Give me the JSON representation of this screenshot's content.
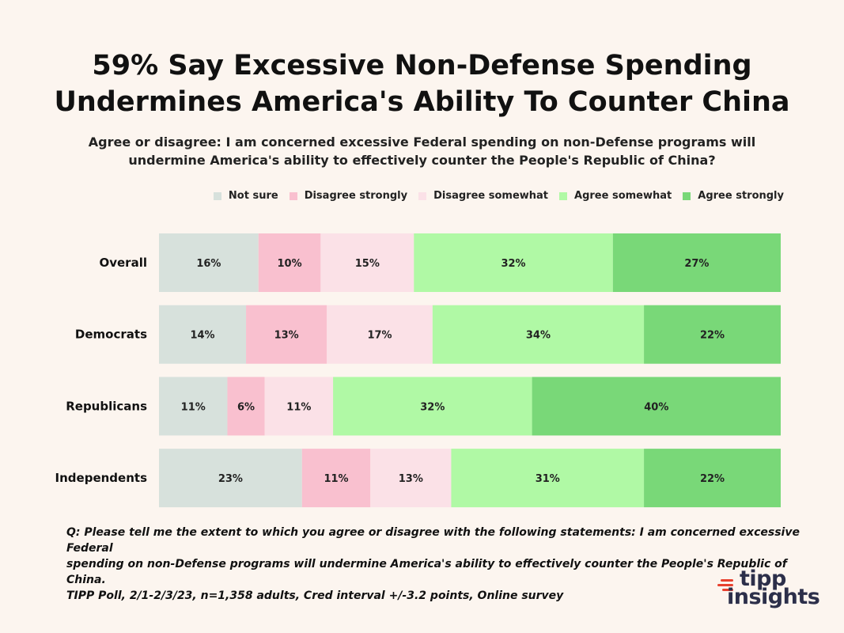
{
  "colors": {
    "background": "#fcf5ef",
    "not_sure": "#d7e1dc",
    "disagree_strongly": "#f9c0cf",
    "disagree_somewhat": "#fbe1e7",
    "agree_somewhat": "#b0f9a5",
    "agree_strongly": "#79d878",
    "logo_accent": "#e8412f",
    "logo_text": "#2c2f4a"
  },
  "title_line1": "59% Say Excessive Non-Defense Spending",
  "title_line2": "Undermines America's Ability To Counter China",
  "subtitle_line1": "Agree or disagree:  I am concerned excessive Federal spending on non-Defense programs will",
  "subtitle_line2": "undermine America's ability to effectively counter the People's Republic of China?",
  "legend": [
    {
      "label": "Not sure",
      "color": "#d7e1dc"
    },
    {
      "label": "Disagree strongly",
      "color": "#f9c0cf"
    },
    {
      "label": "Disagree somewhat",
      "color": "#fbe1e7"
    },
    {
      "label": "Agree somewhat",
      "color": "#b0f9a5"
    },
    {
      "label": "Agree strongly",
      "color": "#79d878"
    }
  ],
  "chart_data": {
    "type": "bar",
    "orientation": "horizontal",
    "stacked": true,
    "title": "59% Say Excessive Non-Defense Spending Undermines America's Ability To Counter China",
    "categories": [
      "Overall",
      "Democrats",
      "Republicans",
      "Independents"
    ],
    "series": [
      {
        "name": "Not sure",
        "color": "#d7e1dc",
        "values": [
          16,
          14,
          11,
          23
        ]
      },
      {
        "name": "Disagree strongly",
        "color": "#f9c0cf",
        "values": [
          10,
          13,
          6,
          11
        ]
      },
      {
        "name": "Disagree somewhat",
        "color": "#fbe1e7",
        "values": [
          15,
          17,
          11,
          13
        ]
      },
      {
        "name": "Agree somewhat",
        "color": "#b0f9a5",
        "values": [
          32,
          34,
          32,
          31
        ]
      },
      {
        "name": "Agree strongly",
        "color": "#79d878",
        "values": [
          27,
          22,
          40,
          22
        ]
      }
    ],
    "value_suffix": "%",
    "legend_position": "top-right",
    "grid": false
  },
  "footnote_line1": "Q:  Please tell me the extent to which you agree or disagree with the following statements: I am concerned excessive Federal",
  "footnote_line2": "spending on non-Defense programs will undermine America's ability to effectively counter the People's Republic of China.",
  "footnote_line3": "TIPP Poll, 2/1-2/3/23, n=1,358 adults, Cred interval +/-3.2 points, Online survey",
  "logo": {
    "line1": "tipp",
    "line2": "insights"
  }
}
